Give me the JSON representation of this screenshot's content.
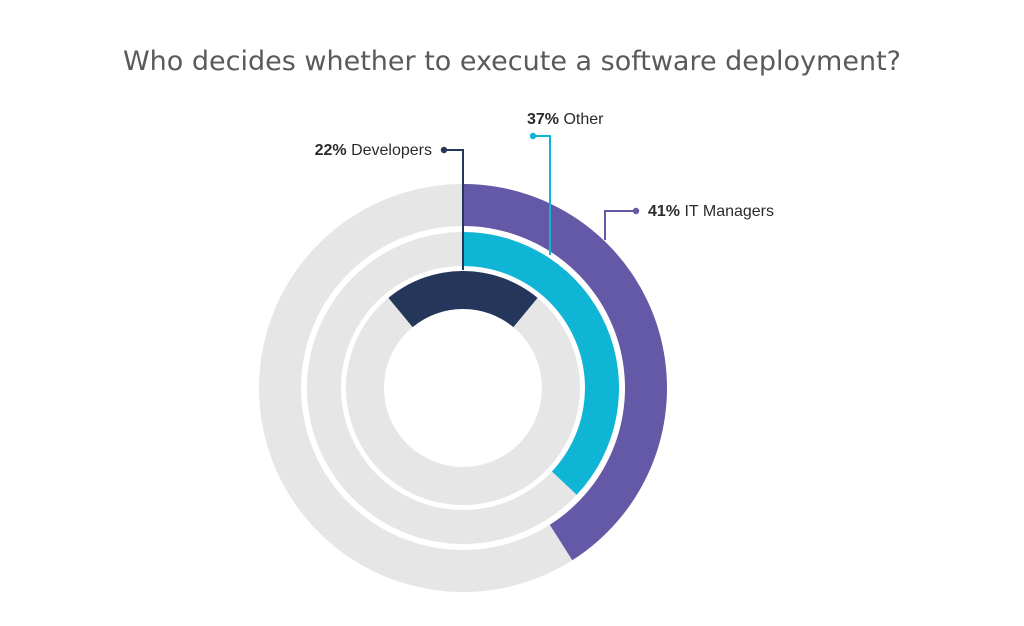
{
  "chart_data": {
    "type": "radial_bar",
    "title": "Who decides whether to execute a software deployment?",
    "unit": "%",
    "max": 100,
    "series": [
      {
        "name": "IT Managers",
        "value": 41,
        "color": "#6459a6",
        "ring": "outer"
      },
      {
        "name": "Other",
        "value": 37,
        "color": "#0fb5d4",
        "ring": "middle"
      },
      {
        "name": "Developers",
        "value": 22,
        "color": "#24375a",
        "ring": "inner"
      }
    ],
    "track_color": "#e6e6e6",
    "labels": {
      "it_managers_pct": "41%",
      "it_managers_name": "IT Managers",
      "other_pct": "37%",
      "other_name": "Other",
      "developers_pct": "22%",
      "developers_name": "Developers"
    }
  }
}
